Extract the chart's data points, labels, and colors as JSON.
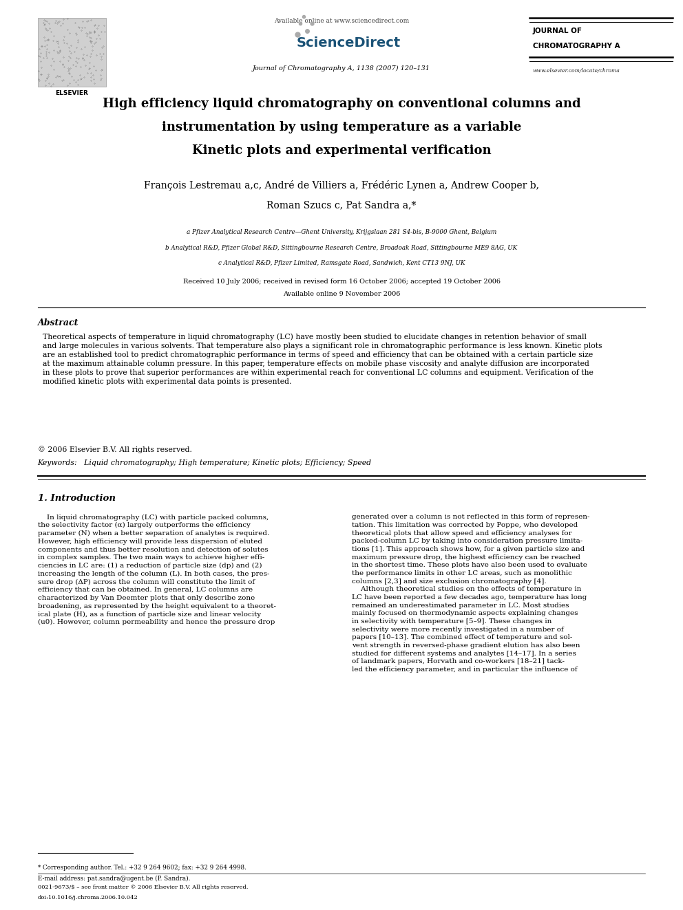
{
  "bg_color": "#ffffff",
  "page_width": 9.92,
  "page_height": 13.23,
  "dpi": 100,
  "header_available": "Available online at www.sciencedirect.com",
  "header_journal_center": "Journal of Chromatography A, 1138 (2007) 120–131",
  "header_journal_right1": "JOURNAL OF",
  "header_journal_right2": "CHROMATOGRAPHY A",
  "header_website": "www.elsevier.com/locate/chroma",
  "header_sciencedirect": "ScienceDirect",
  "title_line1": "High efficiency liquid chromatography on conventional columns and",
  "title_line2": "instrumentation by using temperature as a variable",
  "title_line3": "Kinetic plots and experimental verification",
  "author_line1": "François Lestremau a,c, André de Villiers a, Frédéric Lynen a, Andrew Cooper b,",
  "author_line2": "Roman Szucs c, Pat Sandra a,*",
  "affil_a": "a Pfizer Analytical Research Centre—Ghent University, Krijgslaan 281 S4-bis, B-9000 Ghent, Belgium",
  "affil_b": "b Analytical R&D, Pfizer Global R&D, Sittingbourne Research Centre, Broadoak Road, Sittingbourne ME9 8AG, UK",
  "affil_c": "c Analytical R&D, Pfizer Limited, Ramsgate Road, Sandwich, Kent CT13 9NJ, UK",
  "received": "Received 10 July 2006; received in revised form 16 October 2006; accepted 19 October 2006",
  "available_online": "Available online 9 November 2006",
  "abstract_title": "Abstract",
  "abstract_text": "Theoretical aspects of temperature in liquid chromatography (LC) have mostly been studied to elucidate changes in retention behavior of small\nand large molecules in various solvents. That temperature also plays a significant role in chromatographic performance is less known. Kinetic plots\nare an established tool to predict chromatographic performance in terms of speed and efficiency that can be obtained with a certain particle size\nat the maximum attainable column pressure. In this paper, temperature effects on mobile phase viscosity and analyte diffusion are incorporated\nin these plots to prove that superior performances are within experimental reach for conventional LC columns and equipment. Verification of the\nmodified kinetic plots with experimental data points is presented.",
  "copyright": "© 2006 Elsevier B.V. All rights reserved.",
  "keywords": "Keywords:   Liquid chromatography; High temperature; Kinetic plots; Efficiency; Speed",
  "section1_title": "1. Introduction",
  "col1_text": "    In liquid chromatography (LC) with particle packed columns,\nthe selectivity factor (α) largely outperforms the efficiency\nparameter (N) when a better separation of analytes is required.\nHowever, high efficiency will provide less dispersion of eluted\ncomponents and thus better resolution and detection of solutes\nin complex samples. The two main ways to achieve higher effi-\nciencies in LC are: (1) a reduction of particle size (dp) and (2)\nincreasing the length of the column (L). In both cases, the pres-\nsure drop (ΔP) across the column will constitute the limit of\nefficiency that can be obtained. In general, LC columns are\ncharacterized by Van Deemter plots that only describe zone\nbroadening, as represented by the height equivalent to a theoret-\nical plate (H), as a function of particle size and linear velocity\n(u0). However, column permeability and hence the pressure drop",
  "col2_text": "generated over a column is not reflected in this form of represen-\ntation. This limitation was corrected by Poppe, who developed\ntheoretical plots that allow speed and efficiency analyses for\npacked-column LC by taking into consideration pressure limita-\ntions [1]. This approach shows how, for a given particle size and\nmaximum pressure drop, the highest efficiency can be reached\nin the shortest time. These plots have also been used to evaluate\nthe performance limits in other LC areas, such as monolithic\ncolumns [2,3] and size exclusion chromatography [4].\n    Although theoretical studies on the effects of temperature in\nLC have been reported a few decades ago, temperature has long\nremained an underestimated parameter in LC. Most studies\nmainly focused on thermodynamic aspects explaining changes\nin selectivity with temperature [5–9]. These changes in\nselectivity were more recently investigated in a number of\npapers [10–13]. The combined effect of temperature and sol-\nvent strength in reversed-phase gradient elution has also been\nstudied for different systems and analytes [14–17]. In a series\nof landmark papers, Horvath and co-workers [18–21] tack-\nled the efficiency parameter, and in particular the influence of",
  "footnote1": "* Corresponding author. Tel.: +32 9 264 9602; fax: +32 9 264 4998.",
  "footnote2": "E-mail address: pat.sandra@ugent.be (P. Sandra).",
  "bottom1": "0021-9673/$ – see front matter © 2006 Elsevier B.V. All rights reserved.",
  "bottom2": "doi:10.1016/j.chroma.2006.10.042"
}
